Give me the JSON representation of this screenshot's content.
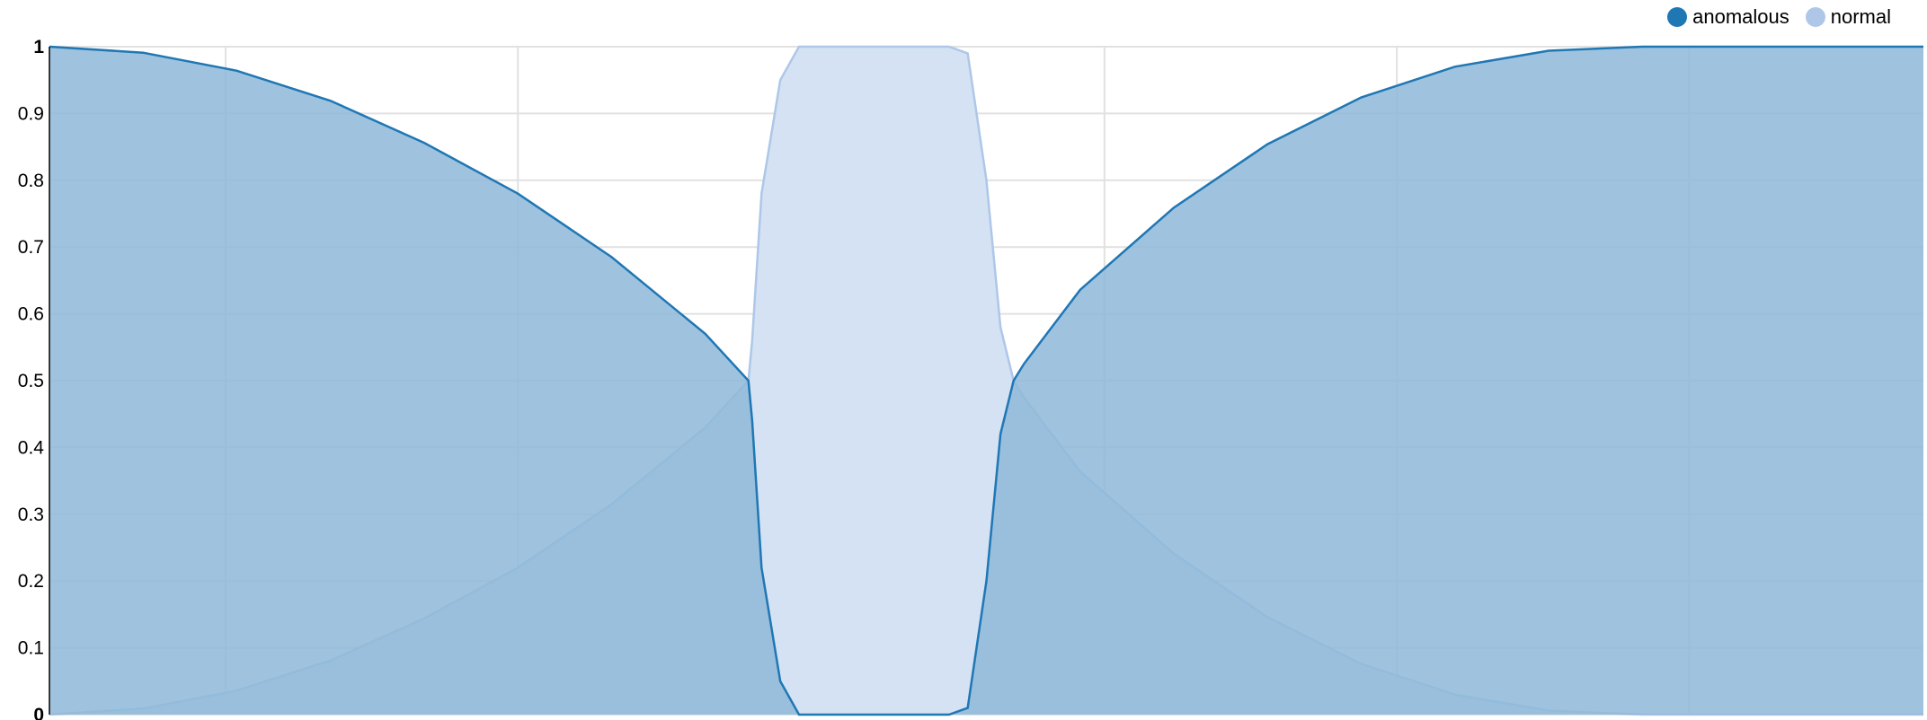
{
  "chart_data": {
    "type": "area",
    "title": "",
    "xlabel": "",
    "ylabel": "",
    "ylim": [
      0,
      1
    ],
    "xlim": [
      0,
      1
    ],
    "yticks": [
      0,
      0.1,
      0.2,
      0.3,
      0.4,
      0.5,
      0.6,
      0.7,
      0.8,
      0.9,
      1
    ],
    "ytick_labels": [
      "0",
      "0.1",
      "0.2",
      "0.3",
      "0.4",
      "0.5",
      "0.6",
      "0.7",
      "0.8",
      "0.9",
      "1"
    ],
    "xgrid": [
      0.094,
      0.25,
      0.406,
      0.563,
      0.719,
      0.875
    ],
    "grid": true,
    "legend_position": "top-right",
    "series": [
      {
        "name": "anomalous",
        "color": "#1f77b4",
        "fill": "#8eb8d8",
        "x": [
          0,
          0.05,
          0.1,
          0.15,
          0.2,
          0.25,
          0.3,
          0.35,
          0.373,
          0.375,
          0.38,
          0.39,
          0.4,
          0.41,
          0.42,
          0.45,
          0.48,
          0.49,
          0.5,
          0.5075,
          0.5145,
          0.52,
          0.55,
          0.6,
          0.65,
          0.7,
          0.75,
          0.8,
          0.85,
          0.9,
          0.95,
          1.0
        ],
        "y": [
          1.0,
          0.991,
          0.964,
          0.919,
          0.856,
          0.78,
          0.685,
          0.57,
          0.5,
          0.44,
          0.22,
          0.05,
          0.0,
          0.0,
          0.0,
          0.0,
          0.0,
          0.01,
          0.2,
          0.42,
          0.5,
          0.525,
          0.636,
          0.759,
          0.854,
          0.924,
          0.97,
          0.994,
          1.0,
          1.0,
          1.0,
          1.0
        ]
      },
      {
        "name": "normal",
        "color": "#aec7e8",
        "fill": "#d4e2f3",
        "x": [
          0,
          0.05,
          0.1,
          0.15,
          0.2,
          0.25,
          0.3,
          0.35,
          0.373,
          0.375,
          0.38,
          0.39,
          0.4,
          0.41,
          0.42,
          0.45,
          0.48,
          0.49,
          0.5,
          0.5075,
          0.5145,
          0.52,
          0.55,
          0.6,
          0.65,
          0.7,
          0.75,
          0.8,
          0.85,
          0.9,
          0.95,
          1.0
        ],
        "y": [
          0.0,
          0.009,
          0.036,
          0.081,
          0.144,
          0.22,
          0.315,
          0.43,
          0.5,
          0.56,
          0.78,
          0.95,
          1.0,
          1.0,
          1.0,
          1.0,
          1.0,
          0.99,
          0.8,
          0.58,
          0.5,
          0.475,
          0.364,
          0.241,
          0.146,
          0.076,
          0.03,
          0.006,
          0.0,
          0.0,
          0.0,
          0.0
        ]
      }
    ]
  }
}
